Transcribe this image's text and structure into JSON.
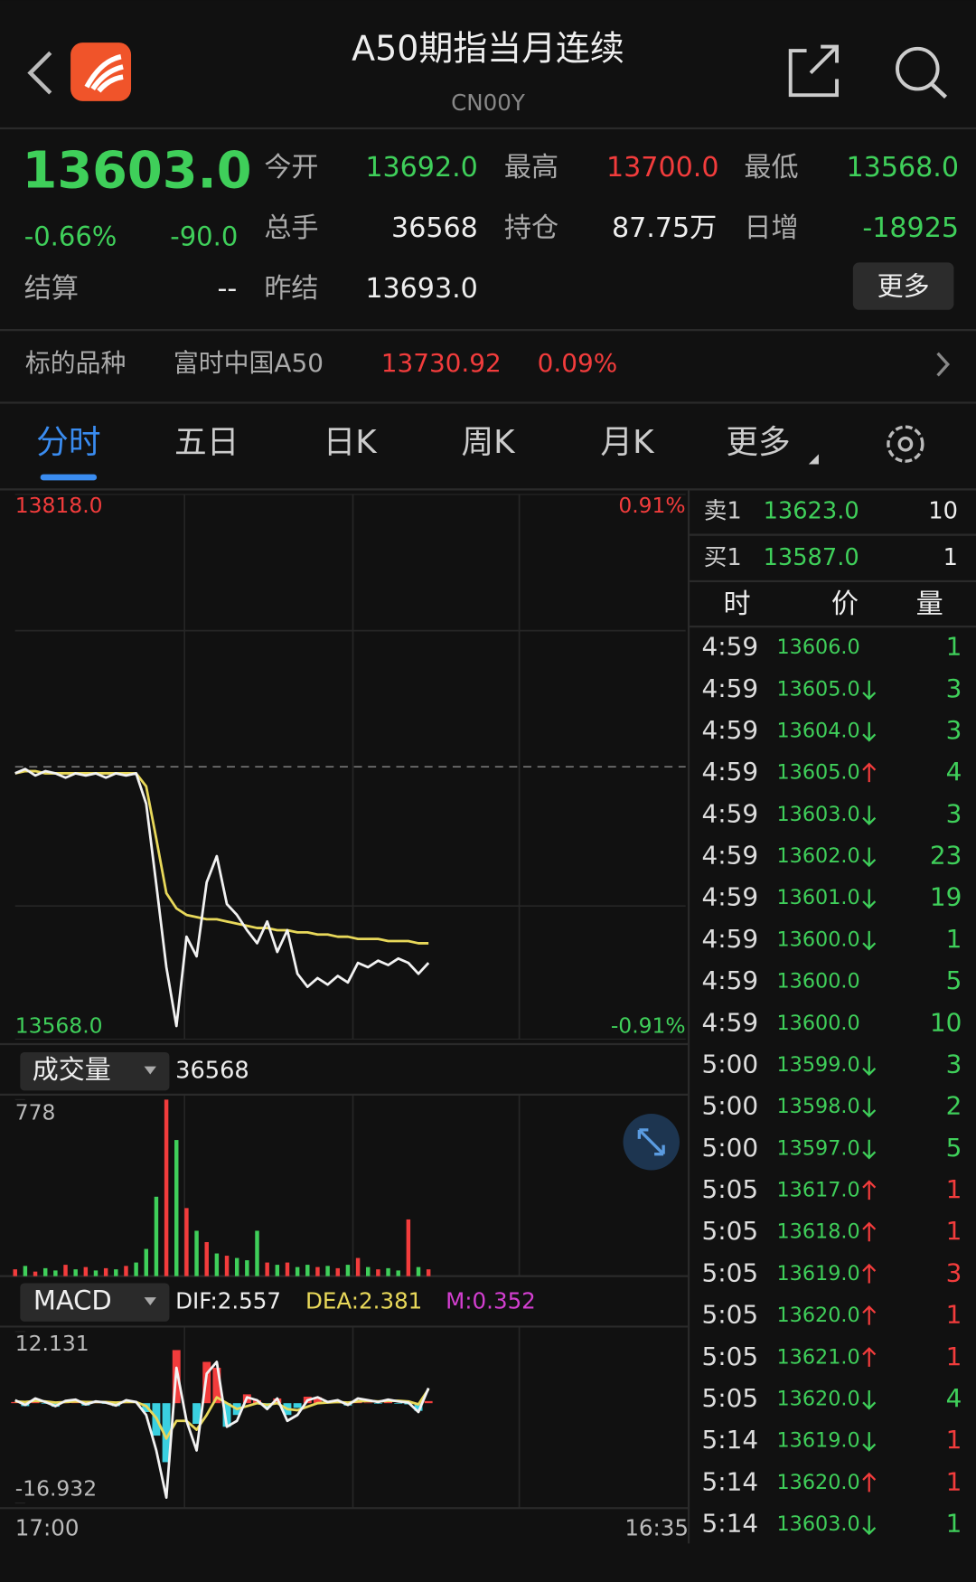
{
  "header": {
    "title": "A50期指当月连续",
    "code": "CN00Y"
  },
  "quote": {
    "price": "13603.0",
    "change_pct": "-0.66%",
    "change": "-90.0",
    "fields": [
      {
        "label": "今开",
        "value": "13692.0",
        "tone": "down"
      },
      {
        "label": "最高",
        "value": "13700.0",
        "tone": "up"
      },
      {
        "label": "最低",
        "value": "13568.0",
        "tone": "down"
      },
      {
        "label": "总手",
        "value": "36568",
        "tone": "flat"
      },
      {
        "label": "持仓",
        "value": "87.75万",
        "tone": "flat"
      },
      {
        "label": "日增",
        "value": "-18925",
        "tone": "down"
      },
      {
        "label": "结算",
        "value": "--",
        "tone": "flat"
      },
      {
        "label": "昨结",
        "value": "13693.0",
        "tone": "flat"
      }
    ],
    "more": "更多"
  },
  "underlying": {
    "label": "标的品种",
    "name": "富时中国A50",
    "price": "13730.92",
    "change_pct": "0.09%"
  },
  "tabs": {
    "items": [
      "分时",
      "五日",
      "日K",
      "周K",
      "月K",
      "更多"
    ],
    "active": 0
  },
  "intraday": {
    "type": "line",
    "ylim": [
      13568,
      13818
    ],
    "yticks": [
      {
        "value": 13818,
        "label": "13818.0"
      },
      {
        "value": 13568,
        "label": "13568.0"
      }
    ],
    "y2lim": [
      -0.91,
      0.91
    ],
    "y2ticks": [
      {
        "value": 0.91,
        "label": "0.91%"
      },
      {
        "value": -0.91,
        "label": "-0.91%"
      }
    ],
    "ref": 13693,
    "xticks": [
      "17:00",
      "16:35"
    ],
    "color": "#f2f2f2",
    "avg_color": "#e8d85a",
    "values": [
      13690,
      13692,
      13689,
      13691,
      13690,
      13688,
      13690,
      13689,
      13690,
      13688,
      13690,
      13689,
      13690,
      13676,
      13639,
      13601,
      13574,
      13615,
      13606,
      13640,
      13652,
      13630,
      13625,
      13618,
      13612,
      13622,
      13608,
      13618,
      13598,
      13592,
      13596,
      13593,
      13597,
      13594,
      13603,
      13601,
      13604,
      13602,
      13605,
      13603,
      13598,
      13603
    ],
    "avg": [
      13690,
      13691,
      13691,
      13690,
      13690,
      13690,
      13690,
      13690,
      13690,
      13690,
      13690,
      13690,
      13690,
      13684,
      13660,
      13635,
      13628,
      13625,
      13624,
      13623,
      13623,
      13622,
      13621,
      13620,
      13619,
      13619,
      13618,
      13618,
      13617,
      13617,
      13616,
      13616,
      13615,
      13615,
      13614,
      13614,
      13614,
      13613,
      13613,
      13613,
      13612,
      13612
    ]
  },
  "volume": {
    "type": "bar",
    "label": "成交量",
    "total": "36568",
    "ylim": [
      0,
      778
    ],
    "yticks": [
      778
    ],
    "values": [
      30,
      45,
      20,
      35,
      25,
      50,
      30,
      40,
      25,
      35,
      30,
      45,
      60,
      120,
      350,
      778,
      600,
      300,
      200,
      150,
      100,
      90,
      80,
      70,
      200,
      60,
      50,
      60,
      40,
      50,
      40,
      45,
      35,
      50,
      80,
      40,
      30,
      35,
      25,
      250,
      40,
      30
    ],
    "colors": [
      "#f23c3c",
      "#3fcf5a",
      "#f23c3c",
      "#3fcf5a",
      "#3fcf5a",
      "#f23c3c",
      "#3fcf5a",
      "#f23c3c",
      "#3fcf5a",
      "#f23c3c",
      "#3fcf5a",
      "#f23c3c",
      "#3fcf5a",
      "#3fcf5a",
      "#3fcf5a",
      "#f23c3c",
      "#3fcf5a",
      "#f23c3c",
      "#3fcf5a",
      "#f23c3c",
      "#3fcf5a",
      "#f23c3c",
      "#3fcf5a",
      "#3fcf5a",
      "#3fcf5a",
      "#f23c3c",
      "#3fcf5a",
      "#f23c3c",
      "#3fcf5a",
      "#3fcf5a",
      "#f23c3c",
      "#3fcf5a",
      "#f23c3c",
      "#3fcf5a",
      "#f23c3c",
      "#3fcf5a",
      "#f23c3c",
      "#3fcf5a",
      "#3fcf5a",
      "#f23c3c",
      "#3fcf5a",
      "#f23c3c"
    ]
  },
  "macd": {
    "type": "macd",
    "label": "MACD",
    "dif_label": "DIF:2.557",
    "dea_label": "DEA:2.381",
    "m_label": "M:0.352",
    "ylim": [
      -16.932,
      12.131
    ],
    "yticks": [
      12.131,
      -16.932
    ],
    "dif": [
      0.5,
      -0.3,
      0.8,
      0.2,
      -0.5,
      0.4,
      0.6,
      -0.2,
      0.3,
      0.1,
      -0.4,
      0.5,
      0.2,
      -2,
      -8,
      -16,
      6,
      -3,
      -8,
      5,
      7,
      -4,
      -3,
      1,
      0.5,
      -1,
      0.8,
      -3,
      -2,
      0.5,
      1,
      0.2,
      0.5,
      -0.3,
      0.8,
      0.5,
      0.2,
      0.6,
      0.3,
      0.1,
      -1.5,
      2.557
    ],
    "dea": [
      0.3,
      0.2,
      0.4,
      0.3,
      0.1,
      0.2,
      0.3,
      0.2,
      0.2,
      0.2,
      0.1,
      0.2,
      0.2,
      -0.5,
      -2.5,
      -6,
      -3,
      -3,
      -4.5,
      -2,
      1,
      0,
      -1,
      -0.5,
      0,
      -0.3,
      0,
      -1,
      -1.2,
      -0.6,
      0,
      0.1,
      0.2,
      0.1,
      0.3,
      0.4,
      0.3,
      0.4,
      0.4,
      0.3,
      -0.2,
      2.381
    ],
    "hist": [
      0.2,
      -0.5,
      0.4,
      -0.1,
      -0.6,
      0.2,
      0.3,
      -0.4,
      0.1,
      -0.1,
      -0.5,
      0.3,
      0,
      -1.5,
      -5.5,
      -10,
      9,
      0,
      -3.5,
      7,
      6,
      -4,
      -2,
      1.5,
      0.5,
      -0.7,
      0.8,
      -2,
      -0.8,
      1.1,
      1,
      0.1,
      0.3,
      -0.4,
      0.5,
      0.1,
      -0.1,
      0.2,
      -0.1,
      -0.2,
      -1.3,
      0.352
    ]
  },
  "orderbook": [
    {
      "label": "卖1",
      "price": "13623.0",
      "qty": "10"
    },
    {
      "label": "买1",
      "price": "13587.0",
      "qty": "1"
    }
  ],
  "trades": {
    "headers": [
      "时",
      "价",
      "量"
    ],
    "rows": [
      {
        "time": "4:59",
        "price": "13606.0",
        "dir": null,
        "qty": "1",
        "qty_tone": "down"
      },
      {
        "time": "4:59",
        "price": "13605.0",
        "dir": "down",
        "qty": "3",
        "qty_tone": "down"
      },
      {
        "time": "4:59",
        "price": "13604.0",
        "dir": "down",
        "qty": "3",
        "qty_tone": "down"
      },
      {
        "time": "4:59",
        "price": "13605.0",
        "dir": "up",
        "qty": "4",
        "qty_tone": "down"
      },
      {
        "time": "4:59",
        "price": "13603.0",
        "dir": "down",
        "qty": "3",
        "qty_tone": "down"
      },
      {
        "time": "4:59",
        "price": "13602.0",
        "dir": "down",
        "qty": "23",
        "qty_tone": "down"
      },
      {
        "time": "4:59",
        "price": "13601.0",
        "dir": "down",
        "qty": "19",
        "qty_tone": "down"
      },
      {
        "time": "4:59",
        "price": "13600.0",
        "dir": "down",
        "qty": "1",
        "qty_tone": "down"
      },
      {
        "time": "4:59",
        "price": "13600.0",
        "dir": null,
        "qty": "5",
        "qty_tone": "down"
      },
      {
        "time": "4:59",
        "price": "13600.0",
        "dir": null,
        "qty": "10",
        "qty_tone": "down"
      },
      {
        "time": "5:00",
        "price": "13599.0",
        "dir": "down",
        "qty": "3",
        "qty_tone": "down"
      },
      {
        "time": "5:00",
        "price": "13598.0",
        "dir": "down",
        "qty": "2",
        "qty_tone": "down"
      },
      {
        "time": "5:00",
        "price": "13597.0",
        "dir": "down",
        "qty": "5",
        "qty_tone": "down"
      },
      {
        "time": "5:05",
        "price": "13617.0",
        "dir": "up",
        "qty": "1",
        "qty_tone": "up"
      },
      {
        "time": "5:05",
        "price": "13618.0",
        "dir": "up",
        "qty": "1",
        "qty_tone": "up"
      },
      {
        "time": "5:05",
        "price": "13619.0",
        "dir": "up",
        "qty": "3",
        "qty_tone": "up"
      },
      {
        "time": "5:05",
        "price": "13620.0",
        "dir": "up",
        "qty": "1",
        "qty_tone": "up"
      },
      {
        "time": "5:05",
        "price": "13621.0",
        "dir": "up",
        "qty": "1",
        "qty_tone": "up"
      },
      {
        "time": "5:05",
        "price": "13620.0",
        "dir": "down",
        "qty": "4",
        "qty_tone": "down"
      },
      {
        "time": "5:14",
        "price": "13619.0",
        "dir": "down",
        "qty": "1",
        "qty_tone": "up"
      },
      {
        "time": "5:14",
        "price": "13620.0",
        "dir": "up",
        "qty": "1",
        "qty_tone": "up"
      },
      {
        "time": "5:14",
        "price": "13603.0",
        "dir": "down",
        "qty": "1",
        "qty_tone": "down"
      }
    ]
  }
}
